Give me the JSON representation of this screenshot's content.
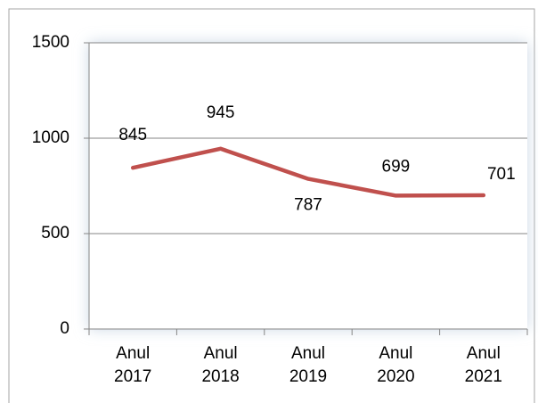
{
  "chart_data": {
    "type": "line",
    "categories": [
      "Anul 2017",
      "Anul 2018",
      "Anul 2019",
      "Anul 2020",
      "Anul 2021"
    ],
    "series": [
      {
        "color": "#c0504d",
        "values": [
          845,
          945,
          787,
          699,
          701
        ]
      }
    ],
    "ylim": [
      0,
      1500
    ],
    "yticks": [
      0,
      500,
      1000,
      1500
    ],
    "grid": true
  }
}
